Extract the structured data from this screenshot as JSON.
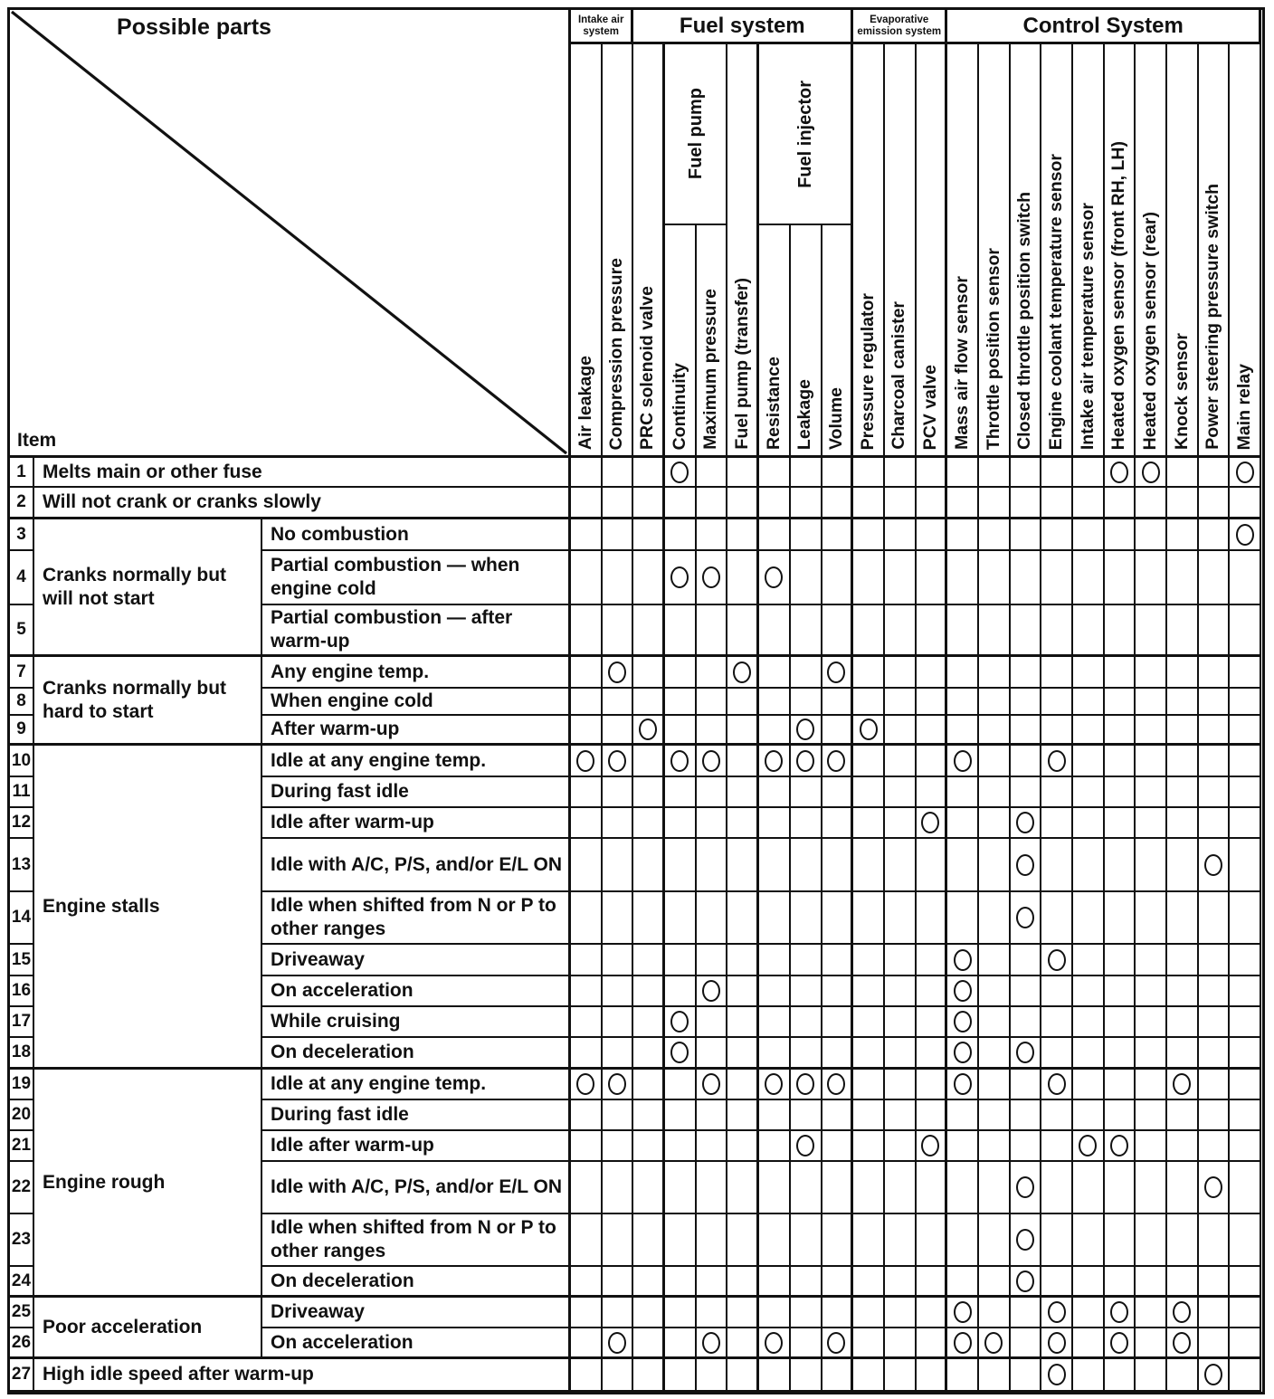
{
  "title": {
    "possible_parts": "Possible parts",
    "item": "Item"
  },
  "colors": {
    "ink": "#111111",
    "paper": "#ffffff"
  },
  "mark_symbol": "open-circle",
  "column_groups": [
    {
      "label": "Intake air system",
      "cols": [
        1,
        2
      ],
      "small": true
    },
    {
      "label": "Fuel system",
      "cols": [
        3,
        9
      ],
      "small": false
    },
    {
      "label": "Evaporative emission system",
      "cols": [
        10,
        12
      ],
      "small": true
    },
    {
      "label": "Control System",
      "cols": [
        13,
        22
      ],
      "small": false
    }
  ],
  "column_subgroups": [
    {
      "label": "Fuel pump",
      "cols": [
        4,
        5
      ]
    },
    {
      "label": "Fuel injector",
      "cols": [
        7,
        9
      ]
    }
  ],
  "columns": [
    "Air leakage",
    "Compression pressure",
    "PRC solenoid valve",
    "Continuity",
    "Maximum pressure",
    "Fuel pump (transfer)",
    "Resistance",
    "Leakage",
    "Volume",
    "Pressure regulator",
    "Charcoal canister",
    "PCV valve",
    "Mass air flow sensor",
    "Throttle position sensor",
    "Closed throttle position switch",
    "Engine coolant temperature sensor",
    "Intake air temperature sensor",
    "Heated oxygen sensor (front RH, LH)",
    "Heated oxygen sensor (rear)",
    "Knock sensor",
    "Power steering pressure switch",
    "Main relay"
  ],
  "rows": [
    {
      "num": "1",
      "label": "Melts main or other fuse",
      "marks": [
        4,
        18,
        19,
        22
      ]
    },
    {
      "num": "2",
      "label": "Will not crank or cranks slowly",
      "marks": []
    },
    {
      "num": "3",
      "group": "Cranks normally but will not start",
      "group_span": 3,
      "sub": "No combustion",
      "marks": [
        22
      ]
    },
    {
      "num": "4",
      "sub": "Partial combustion — when engine cold",
      "marks": [
        4,
        5,
        7
      ]
    },
    {
      "num": "5",
      "sub": "Partial combustion — after warm-up",
      "marks": []
    },
    {
      "num": "7",
      "group": "Cranks normally but hard to start",
      "group_span": 3,
      "sub": "Any engine temp.",
      "marks": [
        2,
        6,
        9
      ]
    },
    {
      "num": "8",
      "sub": "When engine cold",
      "marks": []
    },
    {
      "num": "9",
      "sub": "After warm-up",
      "marks": [
        3,
        8,
        10
      ]
    },
    {
      "num": "10",
      "group": "Engine stalls",
      "group_span": 9,
      "sub": "Idle at any engine temp.",
      "marks": [
        1,
        2,
        4,
        5,
        7,
        8,
        9,
        13,
        16
      ]
    },
    {
      "num": "11",
      "sub": "During fast idle",
      "marks": []
    },
    {
      "num": "12",
      "sub": "Idle after warm-up",
      "marks": [
        12,
        15
      ]
    },
    {
      "num": "13",
      "sub": "Idle with A/C, P/S, and/or E/L ON",
      "marks": [
        15,
        21
      ]
    },
    {
      "num": "14",
      "sub": "Idle when shifted from N or P to other ranges",
      "marks": [
        15
      ]
    },
    {
      "num": "15",
      "sub": "Driveaway",
      "marks": [
        13,
        16
      ]
    },
    {
      "num": "16",
      "sub": "On acceleration",
      "marks": [
        5,
        13
      ]
    },
    {
      "num": "17",
      "sub": "While cruising",
      "marks": [
        4,
        13
      ]
    },
    {
      "num": "18",
      "sub": "On deceleration",
      "marks": [
        4,
        13,
        15
      ]
    },
    {
      "num": "19",
      "group": "Engine rough",
      "group_span": 6,
      "sub": "Idle at any engine temp.",
      "marks": [
        1,
        2,
        5,
        7,
        8,
        9,
        13,
        16,
        20
      ]
    },
    {
      "num": "20",
      "sub": "During fast idle",
      "marks": []
    },
    {
      "num": "21",
      "sub": "Idle after warm-up",
      "marks": [
        8,
        12,
        17,
        18
      ]
    },
    {
      "num": "22",
      "sub": "Idle with A/C, P/S, and/or E/L ON",
      "marks": [
        15,
        21
      ]
    },
    {
      "num": "23",
      "sub": "Idle when shifted from N or P to other ranges",
      "marks": [
        15
      ]
    },
    {
      "num": "24",
      "sub": "On deceleration",
      "marks": [
        15
      ]
    },
    {
      "num": "25",
      "group": "Poor acceleration",
      "group_span": 2,
      "sub": "Driveaway",
      "marks": [
        13,
        16,
        18,
        20
      ]
    },
    {
      "num": "26",
      "sub": "On acceleration",
      "marks": [
        2,
        5,
        7,
        9,
        13,
        14,
        16,
        18,
        20
      ]
    },
    {
      "num": "27",
      "label": "High idle speed after warm-up",
      "marks": [
        16,
        21
      ]
    }
  ]
}
